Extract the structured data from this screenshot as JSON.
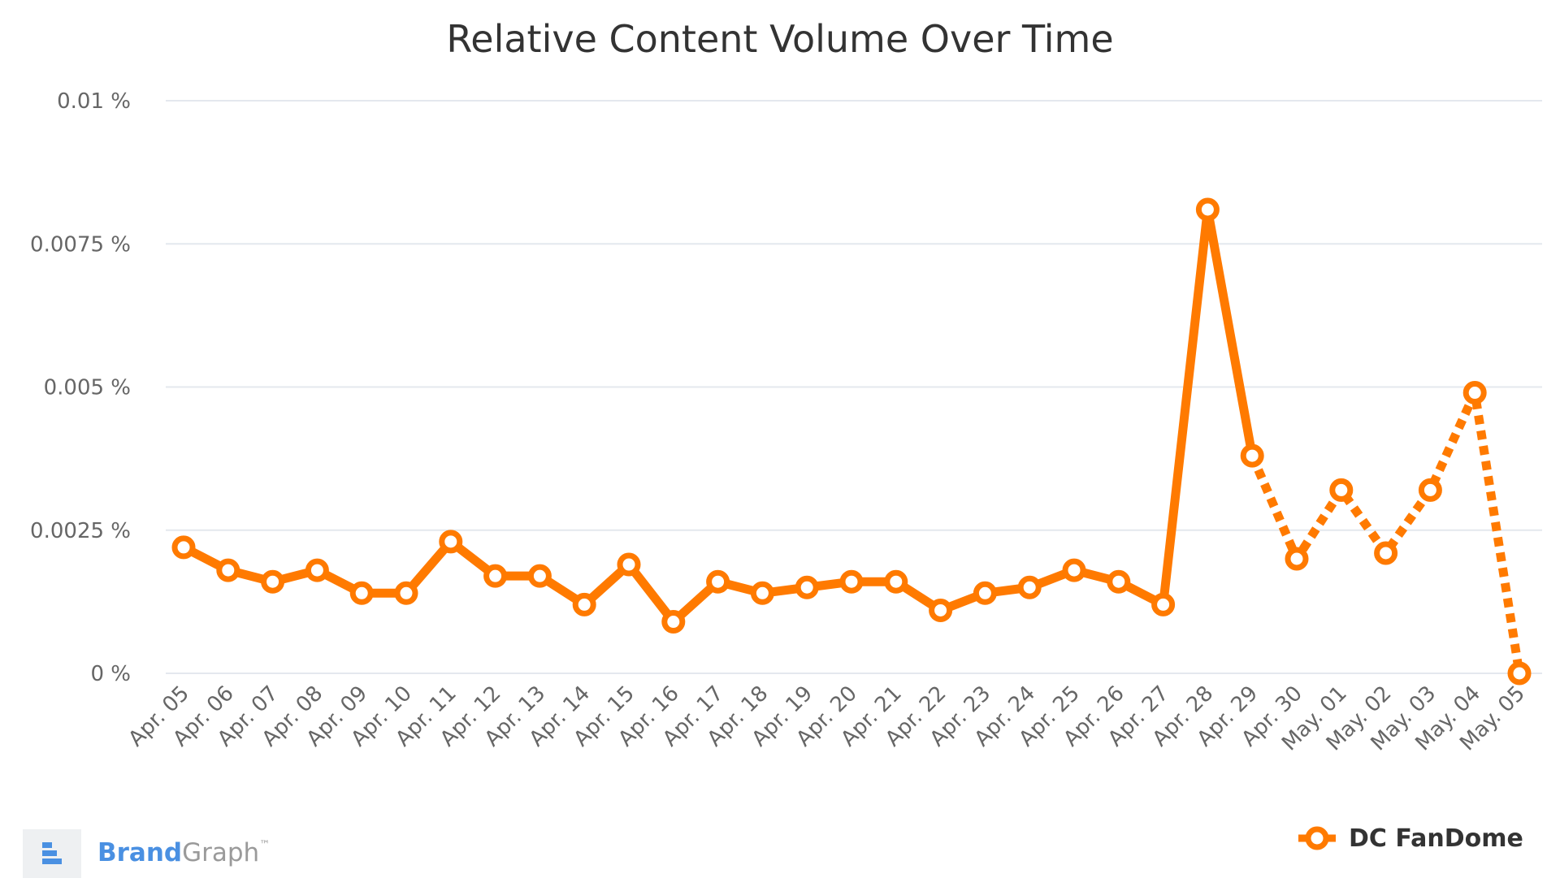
{
  "colors": {
    "series": "#ff7a00",
    "grid": "#e4e8ee",
    "axis_text": "#666666",
    "title_text": "#333333",
    "brand_blue": "#4a90e2",
    "brand_gray": "#9a9a9a"
  },
  "brand": {
    "icon": "brandgraph-logo-icon",
    "name_part1": "Brand",
    "name_part2": "Graph",
    "trademark": "™"
  },
  "chart_data": {
    "type": "line",
    "title": "Relative Content Volume Over Time",
    "xlabel": "",
    "ylabel": "",
    "ylim": [
      0,
      0.01
    ],
    "yticks": [
      "0 %",
      "0.0025 %",
      "0.005 %",
      "0.0075 %",
      "0.01 %"
    ],
    "grid": true,
    "legend_position": "bottom-right",
    "categories": [
      "Apr. 05",
      "Apr. 06",
      "Apr. 07",
      "Apr. 08",
      "Apr. 09",
      "Apr. 10",
      "Apr. 11",
      "Apr. 12",
      "Apr. 13",
      "Apr. 14",
      "Apr. 15",
      "Apr. 16",
      "Apr. 17",
      "Apr. 18",
      "Apr. 19",
      "Apr. 20",
      "Apr. 21",
      "Apr. 22",
      "Apr. 23",
      "Apr. 24",
      "Apr. 25",
      "Apr. 26",
      "Apr. 27",
      "Apr. 28",
      "Apr. 29",
      "Apr. 30",
      "May. 01",
      "May. 02",
      "May. 03",
      "May. 04",
      "May. 05"
    ],
    "series": [
      {
        "name": "DC FanDome",
        "values": [
          0.0022,
          0.0018,
          0.0016,
          0.0018,
          0.0014,
          0.0014,
          0.0023,
          0.0017,
          0.0017,
          0.0012,
          0.0019,
          0.0009,
          0.0016,
          0.0014,
          0.0015,
          0.0016,
          0.0016,
          0.0011,
          0.0014,
          0.0015,
          0.0018,
          0.0016,
          0.0012,
          0.0081,
          0.0038,
          0.002,
          0.0032,
          0.0021,
          0.0032,
          0.0049,
          0.0
        ],
        "dashed_from_index": 24
      }
    ]
  }
}
